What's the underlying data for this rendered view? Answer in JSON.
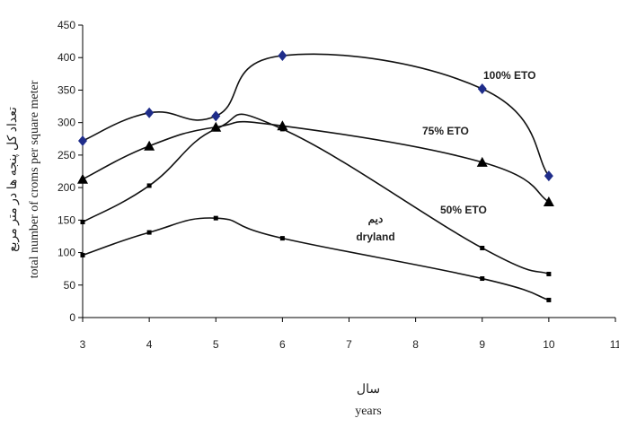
{
  "chart_data": {
    "type": "line",
    "x": [
      3,
      4,
      5,
      6,
      9,
      10
    ],
    "xlim": [
      3,
      11
    ],
    "ylim": [
      0,
      450
    ],
    "x_ticks": [
      "3",
      "4",
      "5",
      "6",
      "7",
      "8",
      "9",
      "10",
      "11"
    ],
    "y_ticks": [
      "0",
      "50",
      "100",
      "150",
      "200",
      "250",
      "300",
      "350",
      "400",
      "450"
    ],
    "xlabel_fa": "سال",
    "xlabel": "years",
    "ylabel_fa": "تعداد کل پنجه ها در متر مربع",
    "ylabel": "total number of croms per square meter",
    "grid": false,
    "series": [
      {
        "name": "100% ETO",
        "values": [
          272,
          315,
          310,
          403,
          352,
          218
        ],
        "marker": "diamond",
        "color": "#1f2d8a"
      },
      {
        "name": "75% ETO",
        "values": [
          213,
          264,
          293,
          295,
          239,
          178
        ],
        "marker": "triangle",
        "color": "#000000"
      },
      {
        "name": "50% ETO",
        "values": [
          147,
          203,
          290,
          290,
          107,
          67
        ],
        "marker": "dot",
        "color": "#000000"
      },
      {
        "name": "dryland",
        "name_fa": "دیم",
        "values": [
          96,
          131,
          153,
          122,
          60,
          27
        ],
        "marker": "dot",
        "color": "#000000"
      }
    ]
  }
}
